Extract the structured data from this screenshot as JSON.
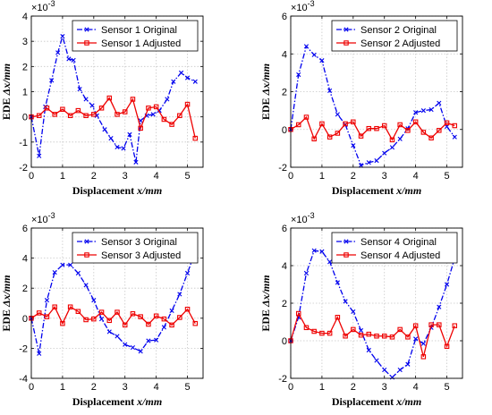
{
  "chart_data": [
    {
      "type": "line",
      "xlabel_main": "Displacement ",
      "xlabel_unit": "x/mm",
      "ylabel_main": "EDE ",
      "ylabel_unit": "Δx/mm",
      "y_multiplier": "×10",
      "y_exponent": "-3",
      "xlim": [
        0,
        5.5
      ],
      "ylim": [
        -2,
        4
      ],
      "xticks": [
        "0",
        "1",
        "2",
        "3",
        "4",
        "5"
      ],
      "yticks": [
        "-2",
        "-1",
        "0",
        "1",
        "2",
        "3",
        "4"
      ],
      "grid": true,
      "legend_position": "top-right",
      "series": [
        {
          "name": "Sensor 1 Original",
          "color": "#0000ee",
          "style": "dash-dot",
          "marker": "x",
          "x": [
            0,
            0.25,
            0.45,
            0.65,
            0.85,
            1.0,
            1.2,
            1.35,
            1.55,
            1.75,
            1.95,
            2.1,
            2.35,
            2.55,
            2.75,
            2.95,
            3.15,
            3.35,
            3.5,
            3.7,
            3.9,
            4.1,
            4.35,
            4.55,
            4.8,
            5.0,
            5.25
          ],
          "y": [
            0,
            -1.55,
            0.4,
            1.45,
            2.55,
            3.2,
            2.3,
            2.25,
            1.1,
            0.7,
            0.45,
            0.05,
            -0.5,
            -0.85,
            -1.2,
            -1.25,
            -0.7,
            -1.8,
            -0.15,
            0.05,
            0.1,
            0.25,
            0.7,
            1.4,
            1.75,
            1.55,
            1.4
          ]
        },
        {
          "name": "Sensor 1 Adjusted",
          "color": "#ee0000",
          "style": "solid",
          "marker": "square",
          "x": [
            0,
            0.25,
            0.5,
            0.75,
            1.0,
            1.25,
            1.5,
            1.75,
            2.0,
            2.25,
            2.5,
            2.75,
            3.0,
            3.25,
            3.5,
            3.75,
            4.0,
            4.25,
            4.5,
            4.75,
            5.0,
            5.25
          ],
          "y": [
            0,
            0.05,
            0.35,
            0.1,
            0.3,
            0.05,
            0.25,
            0.05,
            0.1,
            0.35,
            0.75,
            0.1,
            0.2,
            0.7,
            -0.45,
            0.35,
            0.4,
            -0.1,
            -0.3,
            0.05,
            0.5,
            -0.85
          ]
        }
      ]
    },
    {
      "type": "line",
      "xlabel_main": "Displacement ",
      "xlabel_unit": "x/mm",
      "ylabel_main": "EDE ",
      "ylabel_unit": "Δx/mm",
      "y_multiplier": "×10",
      "y_exponent": "-3",
      "xlim": [
        0,
        5.5
      ],
      "ylim": [
        -2,
        6
      ],
      "xticks": [
        "0",
        "1",
        "2",
        "3",
        "4",
        "5"
      ],
      "yticks": [
        "-2",
        "0",
        "2",
        "4",
        "6"
      ],
      "grid": true,
      "legend_position": "top-right",
      "series": [
        {
          "name": "Sensor 2 Original",
          "color": "#0000ee",
          "style": "dash-dot",
          "marker": "x",
          "x": [
            0,
            0.25,
            0.5,
            0.75,
            1.0,
            1.25,
            1.5,
            1.75,
            2.0,
            2.25,
            2.5,
            2.75,
            3.0,
            3.25,
            3.5,
            3.75,
            4.0,
            4.25,
            4.5,
            4.75,
            5.0,
            5.25
          ],
          "y": [
            0,
            2.9,
            4.4,
            3.95,
            3.65,
            2.05,
            0.8,
            0.25,
            -0.85,
            -1.9,
            -1.75,
            -1.65,
            -1.25,
            -0.95,
            -0.5,
            0.05,
            0.9,
            1.0,
            1.05,
            1.4,
            0.15,
            -0.4
          ]
        },
        {
          "name": "Sensor 2 Adjusted",
          "color": "#ee0000",
          "style": "solid",
          "marker": "square",
          "x": [
            0,
            0.25,
            0.5,
            0.75,
            1.0,
            1.25,
            1.5,
            1.75,
            2.0,
            2.25,
            2.5,
            2.75,
            3.0,
            3.25,
            3.5,
            3.75,
            4.0,
            4.25,
            4.5,
            4.75,
            5.0,
            5.25
          ],
          "y": [
            0,
            0.25,
            0.65,
            -0.5,
            0.3,
            -0.4,
            -0.2,
            0.3,
            0.4,
            -0.35,
            0.05,
            0.05,
            0.2,
            -0.55,
            0.25,
            -0.05,
            0.4,
            -0.15,
            -0.45,
            -0.05,
            0.35,
            0.2
          ]
        }
      ]
    },
    {
      "type": "line",
      "xlabel_main": "Displacement ",
      "xlabel_unit": "x/mm",
      "ylabel_main": "EDE ",
      "ylabel_unit": "Δx/mm",
      "y_multiplier": "×10",
      "y_exponent": "-3",
      "xlim": [
        0,
        5.5
      ],
      "ylim": [
        -4,
        6
      ],
      "xticks": [
        "0",
        "1",
        "2",
        "3",
        "4",
        "5"
      ],
      "yticks": [
        "-4",
        "-2",
        "0",
        "2",
        "4",
        "6"
      ],
      "grid": true,
      "legend_position": "top-right",
      "series": [
        {
          "name": "Sensor 3 Original",
          "color": "#0000ee",
          "style": "dash-dot",
          "marker": "x",
          "x": [
            0,
            0.25,
            0.5,
            0.75,
            1.0,
            1.25,
            1.5,
            1.75,
            2.0,
            2.25,
            2.5,
            2.75,
            3.0,
            3.25,
            3.5,
            3.75,
            4.0,
            4.25,
            4.5,
            4.75,
            5.0,
            5.25
          ],
          "y": [
            0,
            -2.35,
            1.2,
            3.05,
            3.55,
            3.55,
            3.0,
            2.2,
            1.2,
            -0.05,
            -0.9,
            -1.2,
            -1.75,
            -1.95,
            -2.2,
            -1.5,
            -1.45,
            -0.6,
            0.5,
            1.6,
            3.0,
            4.45
          ]
        },
        {
          "name": "Sensor 3 Adjusted",
          "color": "#ee0000",
          "style": "solid",
          "marker": "square",
          "x": [
            0,
            0.25,
            0.5,
            0.75,
            1.0,
            1.25,
            1.5,
            1.75,
            2.0,
            2.25,
            2.5,
            2.75,
            3.0,
            3.25,
            3.5,
            3.75,
            4.0,
            4.25,
            4.5,
            4.75,
            5.0,
            5.25
          ],
          "y": [
            0,
            0.35,
            0.1,
            0.75,
            -0.35,
            0.75,
            0.45,
            -0.1,
            -0.05,
            0.4,
            -0.15,
            0.4,
            -0.45,
            0.3,
            0.1,
            -0.4,
            0.15,
            -0.05,
            -0.45,
            0.05,
            0.6,
            -0.35
          ]
        }
      ]
    },
    {
      "type": "line",
      "xlabel_main": "Displacement ",
      "xlabel_unit": "x/mm",
      "ylabel_main": "EDE ",
      "ylabel_unit": "Δx/mm",
      "y_multiplier": "×10",
      "y_exponent": "-3",
      "xlim": [
        0,
        5.5
      ],
      "ylim": [
        -2,
        6
      ],
      "xticks": [
        "0",
        "1",
        "2",
        "3",
        "4",
        "5"
      ],
      "yticks": [
        "-2",
        "0",
        "2",
        "4",
        "6"
      ],
      "grid": true,
      "legend_position": "top-right",
      "series": [
        {
          "name": "Sensor 4 Original",
          "color": "#0000ee",
          "style": "dash-dot",
          "marker": "x",
          "x": [
            0,
            0.25,
            0.5,
            0.75,
            1.0,
            1.25,
            1.5,
            1.75,
            2.0,
            2.25,
            2.5,
            2.75,
            3.0,
            3.25,
            3.5,
            3.75,
            4.0,
            4.25,
            4.5,
            4.75,
            5.0,
            5.25
          ],
          "y": [
            0,
            1.25,
            3.6,
            4.8,
            4.75,
            4.2,
            3.1,
            2.1,
            1.55,
            0.55,
            -0.5,
            -1.05,
            -1.55,
            -1.95,
            -1.55,
            -1.25,
            0.1,
            -0.15,
            0.7,
            1.8,
            3.0,
            4.4
          ]
        },
        {
          "name": "Sensor 4 Adjusted",
          "color": "#ee0000",
          "style": "solid",
          "marker": "square",
          "x": [
            0,
            0.25,
            0.5,
            0.75,
            1.0,
            1.25,
            1.5,
            1.75,
            2.0,
            2.25,
            2.5,
            2.75,
            3.0,
            3.25,
            3.5,
            3.75,
            4.0,
            4.25,
            4.5,
            4.75,
            5.0,
            5.25
          ],
          "y": [
            0,
            1.45,
            0.7,
            0.5,
            0.4,
            0.4,
            1.25,
            0.25,
            0.6,
            0.3,
            0.35,
            0.25,
            0.25,
            0.2,
            0.6,
            0.2,
            0.8,
            -0.85,
            0.85,
            0.85,
            -0.3,
            0.8
          ]
        }
      ]
    }
  ]
}
